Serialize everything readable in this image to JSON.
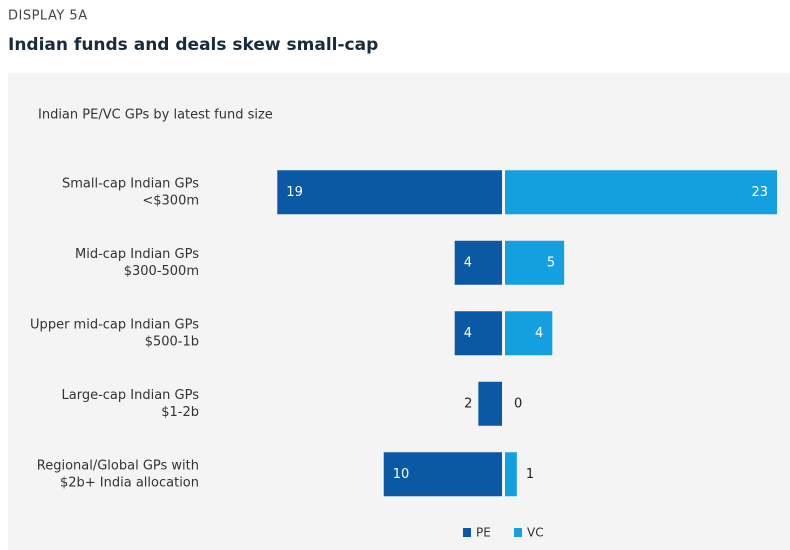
{
  "display_label": "DISPLAY 5A",
  "chart_data": {
    "type": "butterfly-bar",
    "title": "Indian funds and deals skew small-cap",
    "subtitle": "Indian PE/VC GPs by latest fund size",
    "categories": [
      [
        "Small-cap Indian GPs",
        "<$300m"
      ],
      [
        "Mid-cap Indian GPs",
        "$300-500m"
      ],
      [
        "Upper mid-cap Indian GPs",
        "$500-1b"
      ],
      [
        "Large-cap Indian GPs",
        "$1-2b"
      ],
      [
        "Regional/Global GPs with",
        "$2b+ India allocation"
      ]
    ],
    "series": [
      {
        "name": "PE",
        "color": "#0b58a4",
        "side": "left",
        "values": [
          19,
          4,
          4,
          2,
          10
        ]
      },
      {
        "name": "VC",
        "color": "#139fe0",
        "side": "right",
        "values": [
          23,
          5,
          4,
          0,
          1
        ]
      }
    ],
    "legend": "bottom"
  }
}
